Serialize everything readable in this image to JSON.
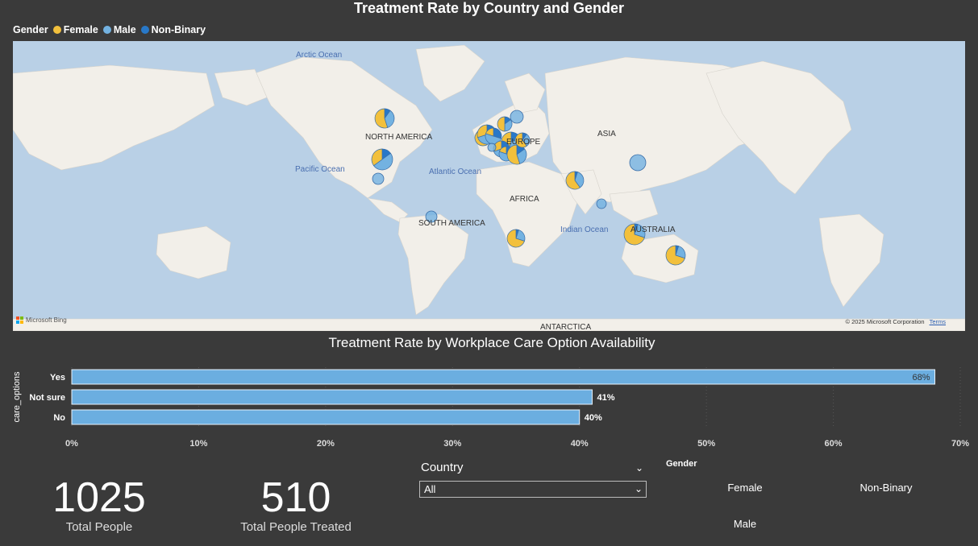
{
  "map_title": "Treatment Rate by Country and Gender",
  "legend": {
    "title": "Gender",
    "items": [
      {
        "label": "Female",
        "color": "#f2c03c"
      },
      {
        "label": "Male",
        "color": "#73b2e1"
      },
      {
        "label": "Non-Binary",
        "color": "#2878c8"
      }
    ]
  },
  "map_labels": {
    "arctic": "Arctic Ocean",
    "pacific": "Pacific Ocean",
    "atlantic": "Atlantic Ocean",
    "indian": "Indian Ocean",
    "north_america": "NORTH AMERICA",
    "south_america": "SOUTH AMERICA",
    "europe": "EUROPE",
    "asia": "ASIA",
    "africa": "AFRICA",
    "australia": "AUSTRALIA",
    "antarctica": "ANTARCTICA",
    "bing": "Microsoft Bing",
    "copyright": "© 2025 Microsoft Corporation",
    "terms": "Terms"
  },
  "chart_data": {
    "type": "bar",
    "title": "Treatment Rate by Workplace Care Option Availability",
    "ylabel": "care_options",
    "xlabel": "",
    "categories": [
      "Yes",
      "Not sure",
      "No"
    ],
    "values": [
      68,
      41,
      40
    ],
    "value_labels": [
      "68%",
      "41%",
      "40%"
    ],
    "xlim": [
      0,
      70
    ],
    "ticks": [
      "0%",
      "10%",
      "20%",
      "30%",
      "40%",
      "50%",
      "60%",
      "70%"
    ],
    "bar_color": "#6baee0"
  },
  "kpis": [
    {
      "value": "1025",
      "label": "Total People"
    },
    {
      "value": "510",
      "label": "Total People Treated"
    }
  ],
  "country_slicer": {
    "title": "Country",
    "value": "All"
  },
  "gender_slicer": {
    "title": "Gender",
    "options": [
      "Female",
      "Non-Binary",
      "Male"
    ]
  }
}
